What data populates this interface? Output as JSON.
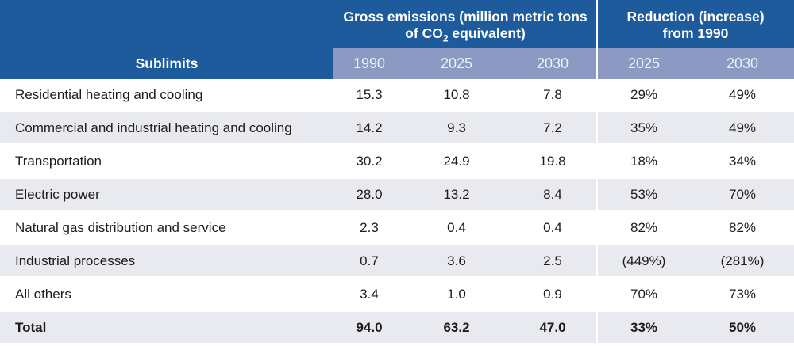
{
  "chart_data": {
    "type": "table",
    "row_header": "Sublimits",
    "column_groups": [
      {
        "label": "Gross emissions (million metric tons of CO2 equivalent)",
        "columns": [
          "1990",
          "2025",
          "2030"
        ]
      },
      {
        "label": "Reduction (increase) from 1990",
        "columns": [
          "2025",
          "2030"
        ]
      }
    ],
    "rows": [
      {
        "label": "Residential heating and cooling",
        "values": [
          "15.3",
          "10.8",
          "7.8",
          "29%",
          "49%"
        ]
      },
      {
        "label": "Commercial and industrial heating and cooling",
        "values": [
          "14.2",
          "9.3",
          "7.2",
          "35%",
          "49%"
        ]
      },
      {
        "label": "Transportation",
        "values": [
          "30.2",
          "24.9",
          "19.8",
          "18%",
          "34%"
        ]
      },
      {
        "label": "Electric power",
        "values": [
          "28.0",
          "13.2",
          "8.4",
          "53%",
          "70%"
        ]
      },
      {
        "label": "Natural gas distribution and service",
        "values": [
          "2.3",
          "0.4",
          "0.4",
          "82%",
          "82%"
        ]
      },
      {
        "label": "Industrial processes",
        "values": [
          "0.7",
          "3.6",
          "2.5",
          "(449%)",
          "(281%)"
        ]
      },
      {
        "label": "All others",
        "values": [
          "3.4",
          "1.0",
          "0.9",
          "70%",
          "73%"
        ]
      },
      {
        "label": "Total",
        "values": [
          "94.0",
          "63.2",
          "47.0",
          "33%",
          "50%"
        ],
        "is_total": true
      }
    ]
  },
  "header": {
    "sublimits_label": "Sublimits",
    "group1_line1": "Gross emissions (million metric tons",
    "group1_line2_pre": "of CO",
    "group1_line2_sub": "2",
    "group1_line2_post": " equivalent)",
    "group2_line1": "Reduction (increase)",
    "group2_line2": "from 1990",
    "years": [
      "1990",
      "2025",
      "2030",
      "2025",
      "2030"
    ]
  },
  "colors": {
    "header_blue": "#1d5b9c",
    "year_band": "#8c9ac3",
    "stripe": "#e8eaf0",
    "header_text": "#ffffff",
    "body_text": "#1c1c1c"
  }
}
